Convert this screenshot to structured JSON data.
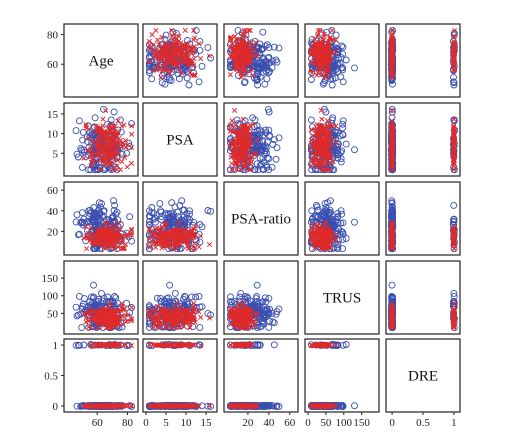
{
  "chart_data": {
    "type": "scatter",
    "title": "",
    "variables": [
      "Age",
      "PSA",
      "PSA-ratio",
      "TRUS",
      "DRE"
    ],
    "ranges": {
      "Age": [
        40,
        85
      ],
      "PSA": [
        0,
        17
      ],
      "PSA-ratio": [
        0,
        65
      ],
      "TRUS": [
        0,
        190
      ],
      "DRE": [
        -0.05,
        1.05
      ]
    },
    "x_ticks": {
      "Age": [
        "60",
        "80"
      ],
      "PSA": [
        "0",
        "5",
        "10",
        "15"
      ],
      "PSA-ratio": [
        "20",
        "40",
        "60"
      ],
      "TRUS": [
        "0",
        "50",
        "100",
        "150"
      ],
      "DRE": [
        "0",
        "0.5",
        "1"
      ]
    },
    "y_ticks": {
      "Age": [
        "60",
        "80"
      ],
      "PSA": [
        "5",
        "10",
        "15"
      ],
      "PSA-ratio": [
        "20",
        "40",
        "60"
      ],
      "TRUS": [
        "50",
        "100",
        "150"
      ],
      "DRE": [
        "0",
        "0.5",
        "1"
      ]
    },
    "series": [
      {
        "marker": "circle",
        "color": "#3a4fb0"
      },
      {
        "marker": "x",
        "color": "#e02a2a"
      }
    ],
    "approximate_distributions": {
      "circle": {
        "Age": {
          "mean": 63,
          "sd": 7
        },
        "PSA": {
          "mean": 6.5,
          "sd": 3
        },
        "PSA-ratio": {
          "mean": 22,
          "sd": 12
        },
        "TRUS": {
          "mean": 55,
          "sd": 25
        },
        "DRE": {
          "value": 0,
          "share_one": 0.15
        }
      },
      "x": {
        "Age": {
          "mean": 66,
          "sd": 7
        },
        "PSA": {
          "mean": 7.5,
          "sd": 3
        },
        "PSA-ratio": {
          "mean": 14,
          "sd": 6
        },
        "TRUS": {
          "mean": 38,
          "sd": 15
        },
        "DRE": {
          "value": 0,
          "share_one": 0.35
        }
      }
    },
    "grid": false,
    "legend": "none"
  }
}
